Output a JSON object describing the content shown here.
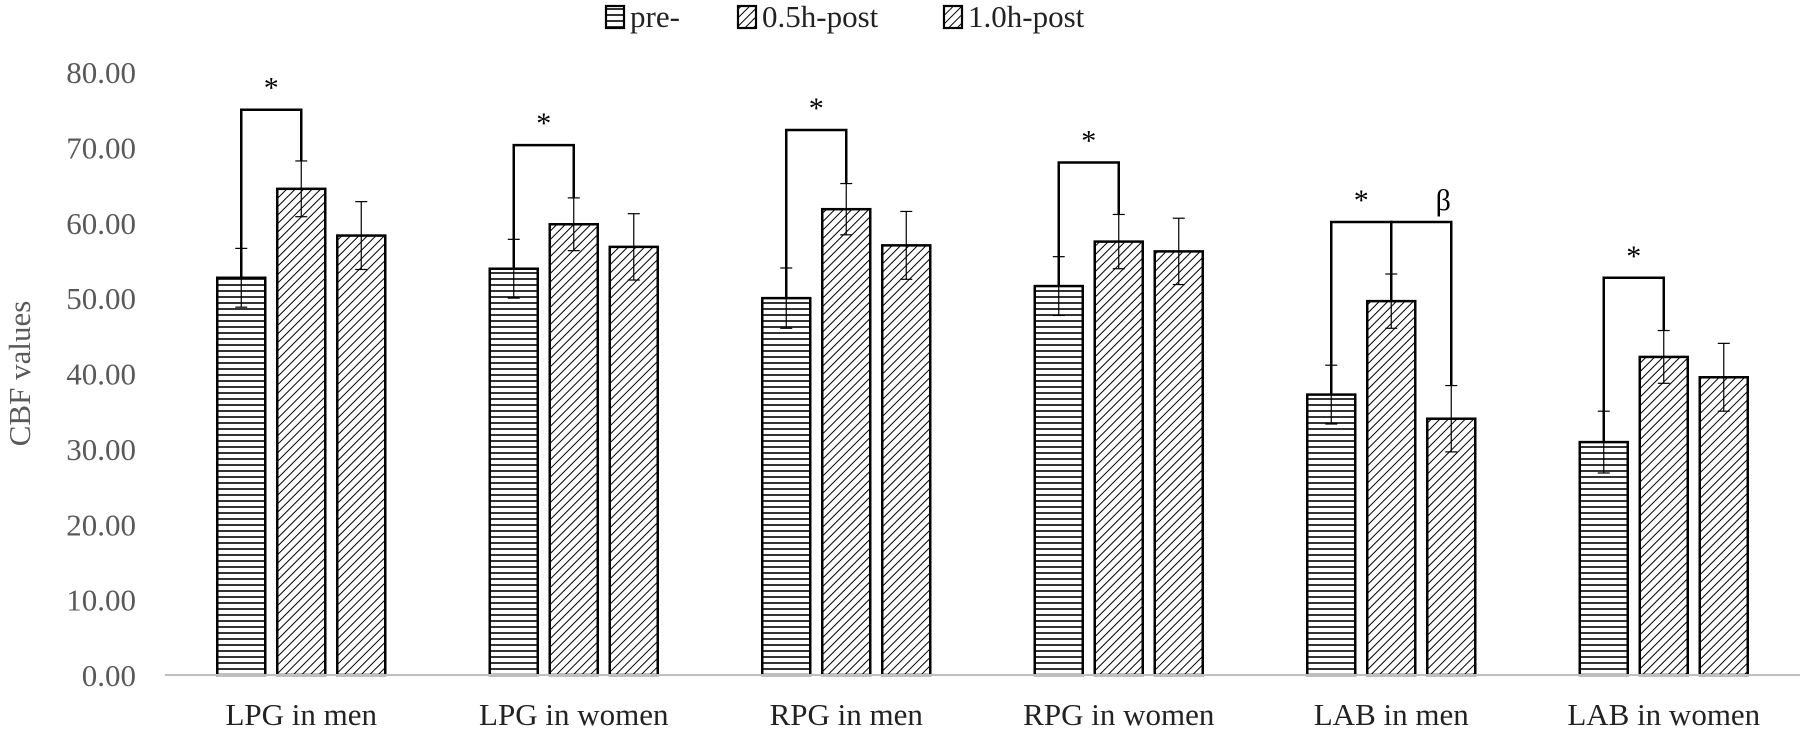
{
  "chart_data": {
    "type": "bar",
    "ylabel": "CBF values",
    "xlabel": "",
    "ylim": [
      0,
      80
    ],
    "y_ticks": [
      "0.00",
      "10.00",
      "20.00",
      "30.00",
      "40.00",
      "50.00",
      "60.00",
      "70.00",
      "80.00"
    ],
    "gridlines": false,
    "legend_position": "top-center",
    "categories": [
      "LPG in men",
      "LPG in women",
      "RPG in men",
      "RPG in women",
      "LAB in men",
      "LAB in women"
    ],
    "series": [
      {
        "name": "pre-",
        "pattern": "horizontal-lines",
        "values": [
          52.7,
          53.9,
          50.0,
          51.6,
          37.2,
          30.9
        ],
        "errors": [
          3.9,
          3.9,
          4.0,
          3.9,
          3.9,
          4.1
        ]
      },
      {
        "name": "0.5h-post",
        "pattern": "diagonal-lines",
        "values": [
          64.5,
          59.8,
          61.8,
          57.5,
          49.6,
          42.2
        ],
        "errors": [
          3.7,
          3.5,
          3.4,
          3.6,
          3.6,
          3.5
        ]
      },
      {
        "name": "1.0h-post",
        "pattern": "diagonal-lines",
        "values": [
          58.3,
          56.8,
          57.0,
          56.2,
          34.0,
          39.5
        ],
        "errors": [
          4.5,
          4.4,
          4.5,
          4.4,
          4.4,
          4.5
        ]
      }
    ],
    "annotations": [
      {
        "category": 0,
        "from_series": 0,
        "to_series": 1,
        "label": "*"
      },
      {
        "category": 1,
        "from_series": 0,
        "to_series": 1,
        "label": "*"
      },
      {
        "category": 2,
        "from_series": 0,
        "to_series": 1,
        "label": "*"
      },
      {
        "category": 3,
        "from_series": 0,
        "to_series": 1,
        "label": "*"
      },
      {
        "category": 4,
        "from_series": 0,
        "to_series": 1,
        "label": "*"
      },
      {
        "category": 4,
        "from_series": 1,
        "to_series": 2,
        "label": "β"
      },
      {
        "category": 5,
        "from_series": 0,
        "to_series": 1,
        "label": "*"
      }
    ],
    "colors": {
      "bar_fill": "#ffffff",
      "bar_stroke": "#000000",
      "text": "#595959",
      "axis": "#bfbfbf"
    }
  }
}
